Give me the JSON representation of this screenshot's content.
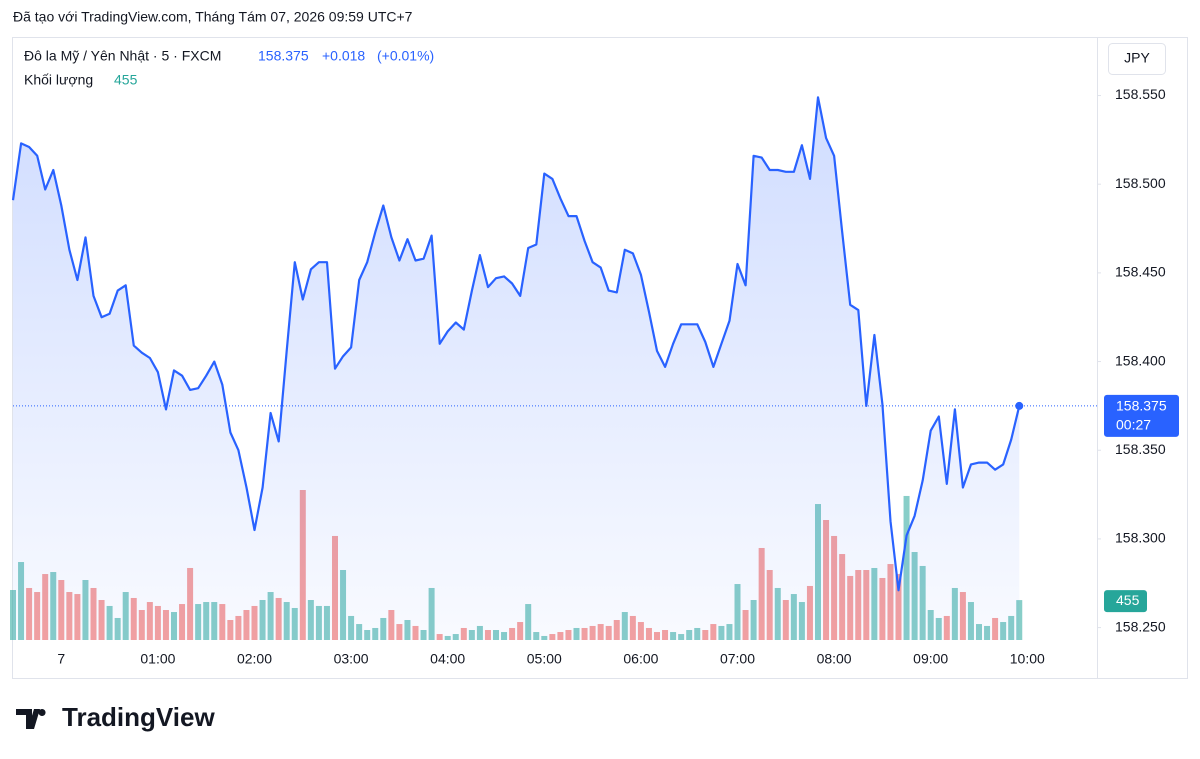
{
  "header": {
    "created": "Đã tạo với TradingView.com, Tháng Tám 07, 2026 09:59 UTC+7",
    "logo": "TradingView"
  },
  "chart_data": {
    "type": "line",
    "title": "Đô la Mỹ / Yên Nhật · 5 · FXCM",
    "change": "+0.018",
    "change_pct": "(+0.01%)",
    "currency": "JPY",
    "countdown": "00:27",
    "categories": [
      null,
      null,
      null,
      null,
      null,
      null,
      "7",
      null,
      null,
      null,
      null,
      null,
      null,
      null,
      null,
      null,
      null,
      null,
      "01:00",
      null,
      null,
      null,
      null,
      null,
      null,
      null,
      null,
      null,
      null,
      null,
      "02:00",
      null,
      null,
      null,
      null,
      null,
      null,
      null,
      null,
      null,
      null,
      null,
      "03:00",
      null,
      null,
      null,
      null,
      null,
      null,
      null,
      null,
      null,
      null,
      null,
      "04:00",
      null,
      null,
      null,
      null,
      null,
      null,
      null,
      null,
      null,
      null,
      null,
      "05:00",
      null,
      null,
      null,
      null,
      null,
      null,
      null,
      null,
      null,
      null,
      null,
      "06:00",
      null,
      null,
      null,
      null,
      null,
      null,
      null,
      null,
      null,
      null,
      null,
      "07:00",
      null,
      null,
      null,
      null,
      null,
      null,
      null,
      null,
      null,
      null,
      null,
      "08:00",
      null,
      null,
      null,
      null,
      null,
      null,
      null,
      null,
      null,
      null,
      null,
      "09:00",
      null,
      null,
      null,
      null,
      null,
      null,
      null,
      null,
      null,
      null,
      null,
      "10:00"
    ],
    "series": [
      {
        "color": "#2962ff",
        "values": [
          158.491,
          158.523,
          158.521,
          158.516,
          158.497,
          158.508,
          158.488,
          158.463,
          158.446,
          158.47,
          158.437,
          158.425,
          158.427,
          158.44,
          158.443,
          158.409,
          158.405,
          158.402,
          158.394,
          158.373,
          158.395,
          158.392,
          158.384,
          158.385,
          158.392,
          158.4,
          158.387,
          158.36,
          158.35,
          158.329,
          158.305,
          158.329,
          158.371,
          158.355,
          158.406,
          158.456,
          158.435,
          158.452,
          158.456,
          158.456,
          158.396,
          158.403,
          158.408,
          158.446,
          158.456,
          158.473,
          158.488,
          158.47,
          158.457,
          158.469,
          158.457,
          158.458,
          158.471,
          158.41,
          158.417,
          158.422,
          158.418,
          158.44,
          158.46,
          158.442,
          158.447,
          158.448,
          158.444,
          158.437,
          158.464,
          158.466,
          158.506,
          158.503,
          158.492,
          158.482,
          158.482,
          158.468,
          158.456,
          158.453,
          158.44,
          158.439,
          158.463,
          158.461,
          158.449,
          158.428,
          158.406,
          158.397,
          158.41,
          158.421,
          158.421,
          158.421,
          158.411,
          158.397,
          158.41,
          158.423,
          158.455,
          158.443,
          158.516,
          158.515,
          158.508,
          158.508,
          158.507,
          158.507,
          158.522,
          158.503,
          158.549,
          158.526,
          158.516,
          158.473,
          158.432,
          158.429,
          158.375,
          158.415,
          158.376,
          158.31,
          158.271,
          158.302,
          158.313,
          158.333,
          158.361,
          158.369,
          158.331,
          158.373,
          158.329,
          158.342,
          158.343,
          158.343,
          158.339,
          158.342,
          158.356,
          158.375,
          null
        ]
      },
      {
        "name": "Khối lượng",
        "type": "bar",
        "up_color": "#26a69a",
        "down_color": "#ef5350",
        "values": [
          570,
          889,
          593,
          547,
          752,
          775,
          684,
          547,
          524,
          684,
          593,
          456,
          388,
          251,
          547,
          479,
          342,
          433,
          388,
          342,
          319,
          410,
          821,
          410,
          433,
          433,
          410,
          228,
          274,
          342,
          388,
          456,
          547,
          479,
          433,
          365,
          1710,
          456,
          388,
          388,
          1186,
          798,
          274,
          182,
          114,
          137,
          251,
          342,
          182,
          228,
          160,
          114,
          593,
          68,
          46,
          68,
          137,
          114,
          160,
          114,
          114,
          91,
          137,
          205,
          410,
          91,
          46,
          68,
          91,
          114,
          137,
          137,
          160,
          182,
          160,
          228,
          319,
          274,
          205,
          137,
          91,
          114,
          91,
          68,
          114,
          137,
          114,
          182,
          160,
          182,
          638,
          342,
          456,
          1049,
          798,
          593,
          456,
          524,
          433,
          616,
          1550,
          1368,
          1186,
          980,
          730,
          798,
          798,
          821,
          707,
          866,
          752,
          1642,
          1003,
          844,
          342,
          251,
          274,
          593,
          547,
          433,
          182,
          160,
          251,
          205,
          274,
          455,
          null
        ]
      }
    ],
    "ylim": [
      158.243,
      158.583
    ],
    "yticks": [
      {
        "value": 158.25,
        "label": "158.250"
      },
      {
        "value": 158.3,
        "label": "158.300"
      },
      {
        "value": 158.35,
        "label": "158.350"
      },
      {
        "value": 158.4,
        "label": "158.400"
      },
      {
        "value": 158.45,
        "label": "158.450"
      },
      {
        "value": 158.5,
        "label": "158.500"
      },
      {
        "value": 158.55,
        "label": "158.550"
      }
    ],
    "grid": false
  }
}
